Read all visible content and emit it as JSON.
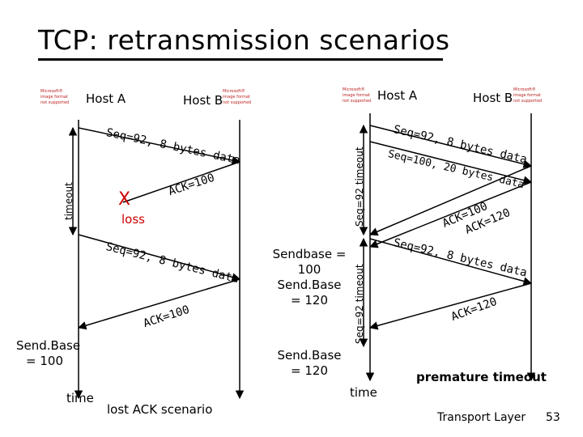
{
  "title": "TCP: retransmission scenarios",
  "placeholder_image_text": "Microsoft® image format not supported",
  "left_scenario": {
    "host_a": "Host A",
    "host_b": "Host B",
    "msg1": "Seq=92, 8 bytes data",
    "ack1": "ACK=100",
    "loss_mark": "X",
    "loss_label": "loss",
    "msg2": "Seq=92, 8 bytes data",
    "ack2": "ACK=100",
    "timeout_label": "timeout",
    "sendbase": "Send.Base = 100",
    "time_label": "time",
    "caption": "lost ACK scenario"
  },
  "right_scenario": {
    "host_a": "Host A",
    "host_b": "Host B",
    "msg1": "Seq=92, 8 bytes data",
    "msg2": "Seq=100, 20 bytes data",
    "ack1": "ACK=100",
    "ack2": "ACK=120",
    "msg3": "Seq=92, 8 bytes data",
    "ack3": "ACK=120",
    "timeout1_label": "Seq=92 timeout",
    "timeout2_label": "Seq=92 timeout",
    "sendbase_1": "Sendbase = 100",
    "sendbase_2": "Send.Base = 120",
    "sendbase_3": "Send.Base = 120",
    "time_label": "time",
    "caption": "premature timeout"
  },
  "footer": {
    "chapter": "Transport Layer",
    "page": "53"
  },
  "colors": {
    "loss_mark": "#cc0000",
    "line": "#000000"
  }
}
